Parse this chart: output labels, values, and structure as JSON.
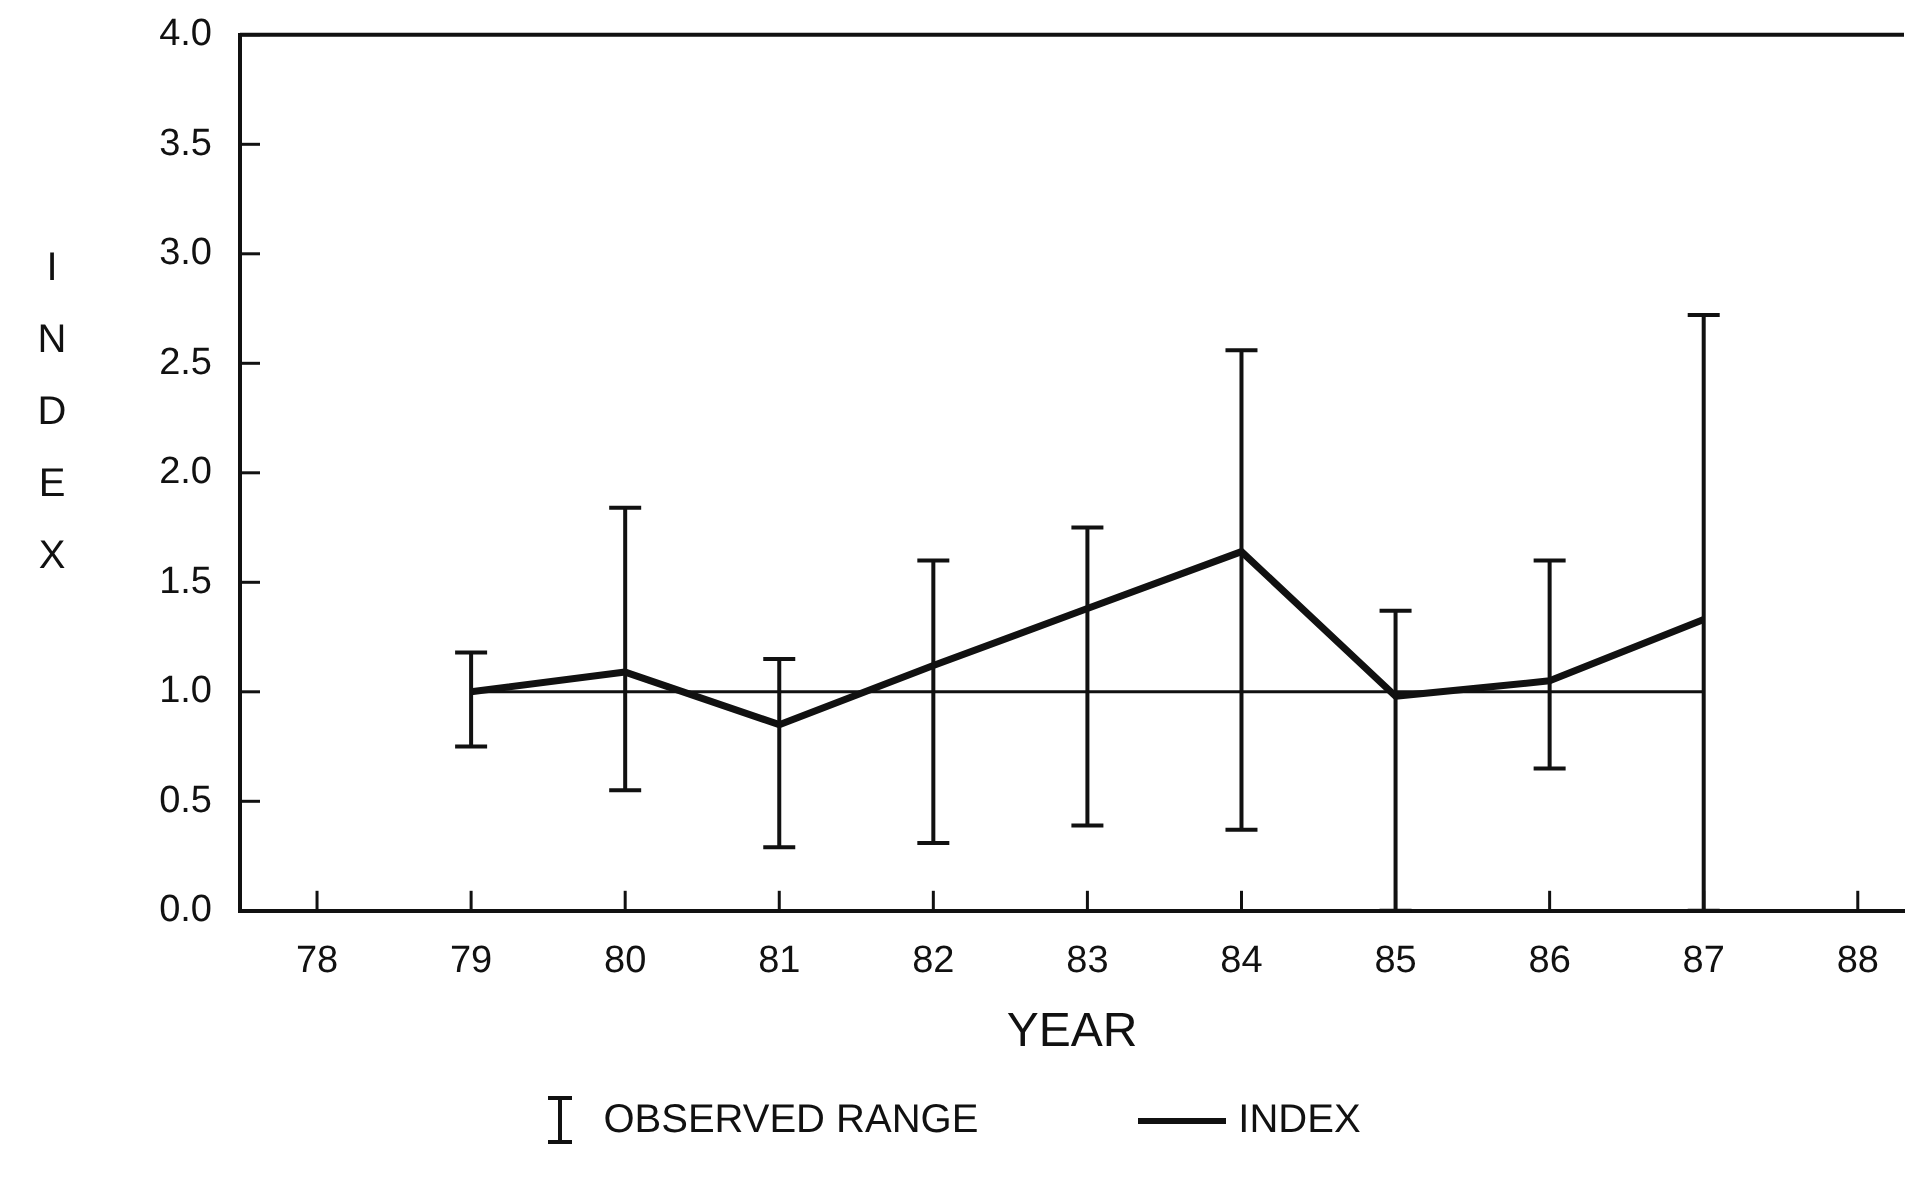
{
  "chart_data": {
    "type": "line",
    "xlabel": "YEAR",
    "ylabel": "INDEX",
    "x": [
      79,
      80,
      81,
      82,
      83,
      84,
      85,
      86,
      87
    ],
    "series": [
      {
        "name": "INDEX",
        "color": "#111111",
        "values": [
          1.0,
          1.09,
          0.85,
          1.12,
          1.38,
          1.64,
          0.98,
          1.05,
          1.33
        ],
        "errors": [
          [
            0.75,
            1.18
          ],
          [
            0.55,
            1.84
          ],
          [
            0.29,
            1.15
          ],
          [
            0.31,
            1.6
          ],
          [
            0.39,
            1.75
          ],
          [
            0.37,
            2.56
          ],
          [
            0.0,
            1.37
          ],
          [
            0.65,
            1.6
          ],
          [
            0.0,
            2.72
          ]
        ]
      },
      {
        "color": "#111111",
        "x": [
          79,
          87
        ],
        "values": [
          1.0,
          1.0
        ]
      }
    ],
    "annotations": [
      "OBSERVED RANGE"
    ],
    "xlim": [
      77.5,
      88.3
    ],
    "xticks": [
      78,
      79,
      80,
      81,
      82,
      83,
      84,
      85,
      86,
      87,
      88
    ],
    "ylim": [
      0,
      4
    ],
    "yticks": [
      {
        "value": 0,
        "label": "0.0"
      },
      {
        "value": 0.5,
        "label": "0.5"
      },
      {
        "value": 1,
        "label": "1.0"
      },
      {
        "value": 1.5,
        "label": "1.5"
      },
      {
        "value": 2,
        "label": "2.0"
      },
      {
        "value": 2.5,
        "label": "2.5"
      },
      {
        "value": 3,
        "label": "3.0"
      },
      {
        "value": 3.5,
        "label": "3.5"
      },
      {
        "value": 4,
        "label": "4.0"
      }
    ],
    "legend": "bottom",
    "marker": "none",
    "line_style": "solid"
  }
}
